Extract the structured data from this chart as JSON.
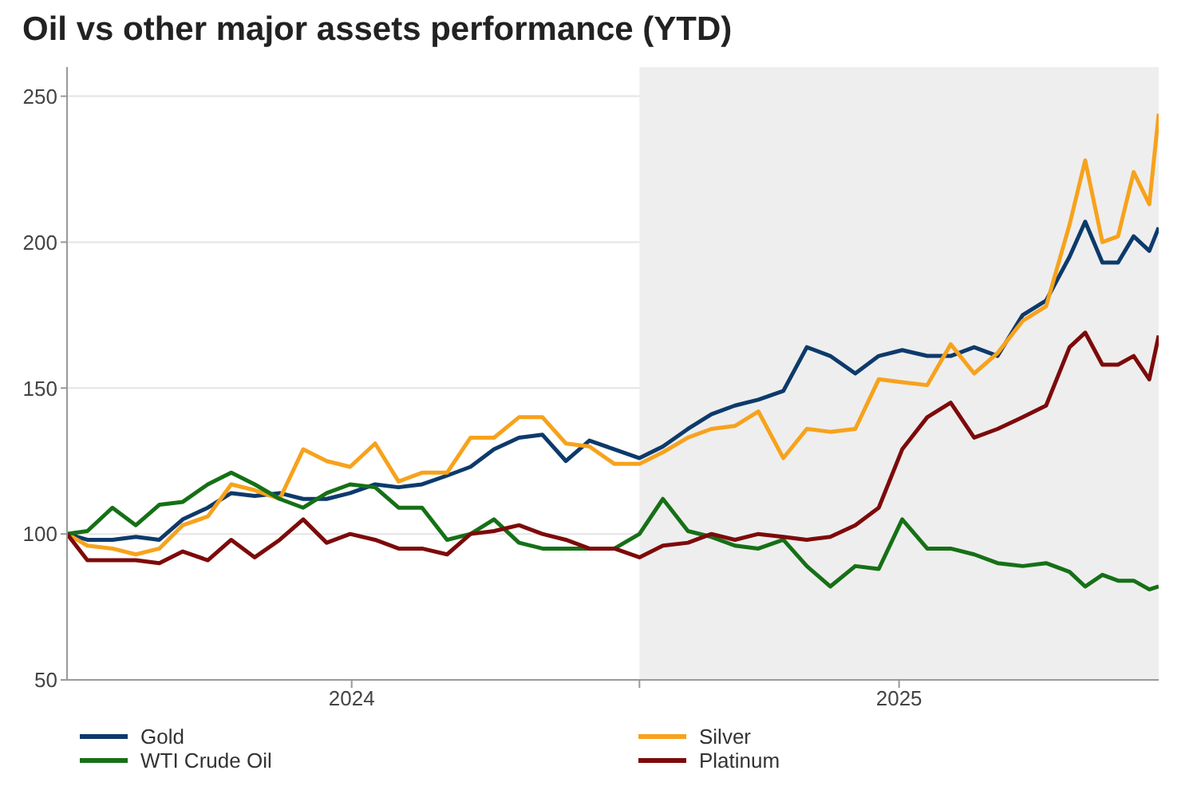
{
  "chart_data": {
    "type": "line",
    "title": "Oil vs other major assets performance (YTD)",
    "x": [
      "2024-01-01",
      "2024-01-14",
      "2024-01-30",
      "2024-02-14",
      "2024-02-29",
      "2024-03-15",
      "2024-03-31",
      "2024-04-15",
      "2024-04-30",
      "2024-05-16",
      "2024-05-31",
      "2024-06-15",
      "2024-06-30",
      "2024-07-16",
      "2024-07-31",
      "2024-08-15",
      "2024-08-31",
      "2024-09-15",
      "2024-09-30",
      "2024-10-16",
      "2024-10-31",
      "2024-11-15",
      "2024-11-30",
      "2024-12-16",
      "2025-01-01",
      "2025-01-16",
      "2025-02-01",
      "2025-02-16",
      "2025-03-03",
      "2025-03-18",
      "2025-04-03",
      "2025-04-18",
      "2025-05-03",
      "2025-05-19",
      "2025-06-03",
      "2025-06-18",
      "2025-07-04",
      "2025-07-19",
      "2025-08-03",
      "2025-08-18",
      "2025-09-03",
      "2025-09-18",
      "2025-10-03",
      "2025-10-13",
      "2025-10-24",
      "2025-11-03",
      "2025-11-13",
      "2025-11-23",
      "2025-11-29"
    ],
    "series": [
      {
        "name": "Gold",
        "color": "#0d3a6b",
        "values": [
          100,
          98,
          98,
          99,
          98,
          105,
          109,
          114,
          113,
          114,
          112,
          112,
          114,
          117,
          116,
          117,
          120,
          123,
          129,
          133,
          134,
          125,
          132,
          129,
          126,
          130,
          136,
          141,
          144,
          146,
          149,
          164,
          161,
          155,
          161,
          163,
          161,
          161,
          164,
          161,
          175,
          180,
          195,
          207,
          193,
          193,
          202,
          197,
          205
        ]
      },
      {
        "name": "Silver",
        "color": "#f7a21c",
        "values": [
          100,
          96,
          95,
          93,
          95,
          103,
          106,
          117,
          115,
          112,
          129,
          125,
          123,
          131,
          118,
          121,
          121,
          133,
          133,
          140,
          140,
          131,
          130,
          124,
          124,
          128,
          133,
          136,
          137,
          142,
          126,
          136,
          135,
          136,
          153,
          152,
          151,
          165,
          155,
          162,
          173,
          178,
          206,
          228,
          200,
          202,
          224,
          213,
          244
        ]
      },
      {
        "name": "WTI Crude Oil",
        "color": "#167016",
        "values": [
          100,
          101,
          109,
          103,
          110,
          111,
          117,
          121,
          117,
          112,
          109,
          114,
          117,
          116,
          109,
          109,
          98,
          100,
          105,
          97,
          95,
          95,
          95,
          95,
          100,
          112,
          101,
          99,
          96,
          95,
          98,
          89,
          82,
          89,
          88,
          105,
          95,
          95,
          93,
          90,
          89,
          90,
          87,
          82,
          86,
          84,
          84,
          81,
          82
        ]
      },
      {
        "name": "Platinum",
        "color": "#7d0a0a",
        "values": [
          100,
          91,
          91,
          91,
          90,
          94,
          91,
          98,
          92,
          98,
          105,
          97,
          100,
          98,
          95,
          95,
          93,
          100,
          101,
          103,
          100,
          98,
          95,
          95,
          92,
          96,
          97,
          100,
          98,
          100,
          99,
          98,
          99,
          103,
          109,
          129,
          140,
          145,
          133,
          136,
          140,
          144,
          164,
          169,
          158,
          158,
          161,
          153,
          168
        ]
      }
    ],
    "xlim": [
      "2024-01-01",
      "2025-11-29"
    ],
    "xticks": [
      {
        "value": "2024-07-01",
        "label": "2024"
      },
      {
        "value": "2025-01-01",
        "label": null
      },
      {
        "value": "2025-06-16",
        "label": "2025"
      }
    ],
    "ylim": [
      50,
      260
    ],
    "yticks": [
      50,
      100,
      150,
      200,
      250
    ],
    "grid": "y",
    "legend": "bottom",
    "bands": [
      {
        "axis": "x",
        "from": "2025-01-01",
        "to": "2025-11-29",
        "color": "#eeeeee"
      }
    ]
  }
}
